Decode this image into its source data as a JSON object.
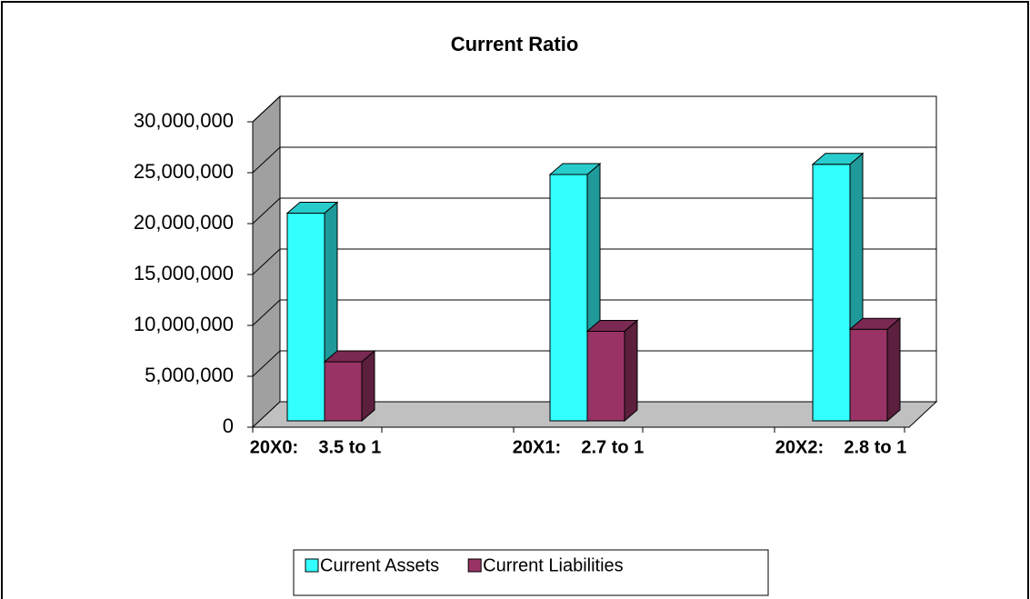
{
  "chart_data": {
    "type": "bar",
    "title": "Current Ratio",
    "categories": [
      "20X0:    3.5 to 1",
      "20X1:    2.7 to 1",
      "20X2:    2.8 to 1"
    ],
    "series": [
      {
        "name": "Current Assets",
        "color": "#33ffff",
        "values": [
          20400000,
          24200000,
          25200000
        ]
      },
      {
        "name": "Current Liabilities",
        "color": "#993366",
        "values": [
          5800000,
          8800000,
          9000000
        ]
      }
    ],
    "ylim": [
      0,
      30000000
    ],
    "yticks": [
      0,
      {
        "value": 5000000,
        "label": "5,000,000"
      },
      {
        "value": 10000000,
        "label": "10,000,000"
      },
      {
        "value": 15000000,
        "label": "15,000,000"
      },
      {
        "value": 20000000,
        "label": "20,000,000"
      },
      {
        "value": 25000000,
        "label": "25,000,000"
      },
      {
        "value": 30000000,
        "label": "30,000,000"
      }
    ],
    "grid": true,
    "legend": "bottom"
  }
}
